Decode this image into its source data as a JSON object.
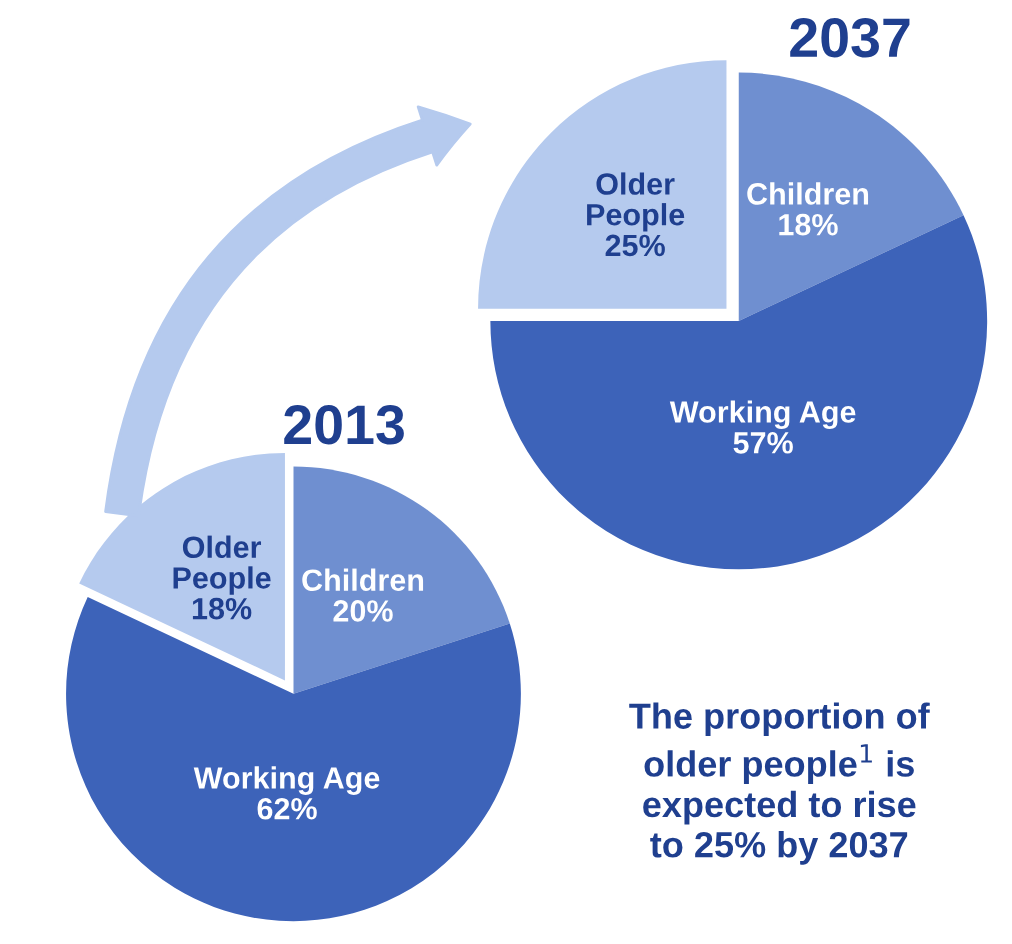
{
  "chart_data": [
    {
      "type": "pie",
      "title": "2013",
      "categories": [
        "Children",
        "Working Age",
        "Older\nPeople"
      ],
      "values": [
        20,
        62,
        18
      ],
      "value_labels": [
        "20%",
        "62%",
        "18%"
      ],
      "colors": [
        "#6f8fd0",
        "#3d63b9",
        "#b5caee"
      ]
    },
    {
      "type": "pie",
      "title": "2037",
      "categories": [
        "Children",
        "Working Age",
        "Older\nPeople"
      ],
      "values": [
        18,
        57,
        25
      ],
      "value_labels": [
        "18%",
        "57%",
        "25%"
      ],
      "colors": [
        "#6f8fd0",
        "#3d63b9",
        "#b5caee"
      ],
      "annotations": [
        "The proportion of\nolder people$^{1}$ is\nexpected to rise\nto 25% by 2037"
      ]
    }
  ]
}
